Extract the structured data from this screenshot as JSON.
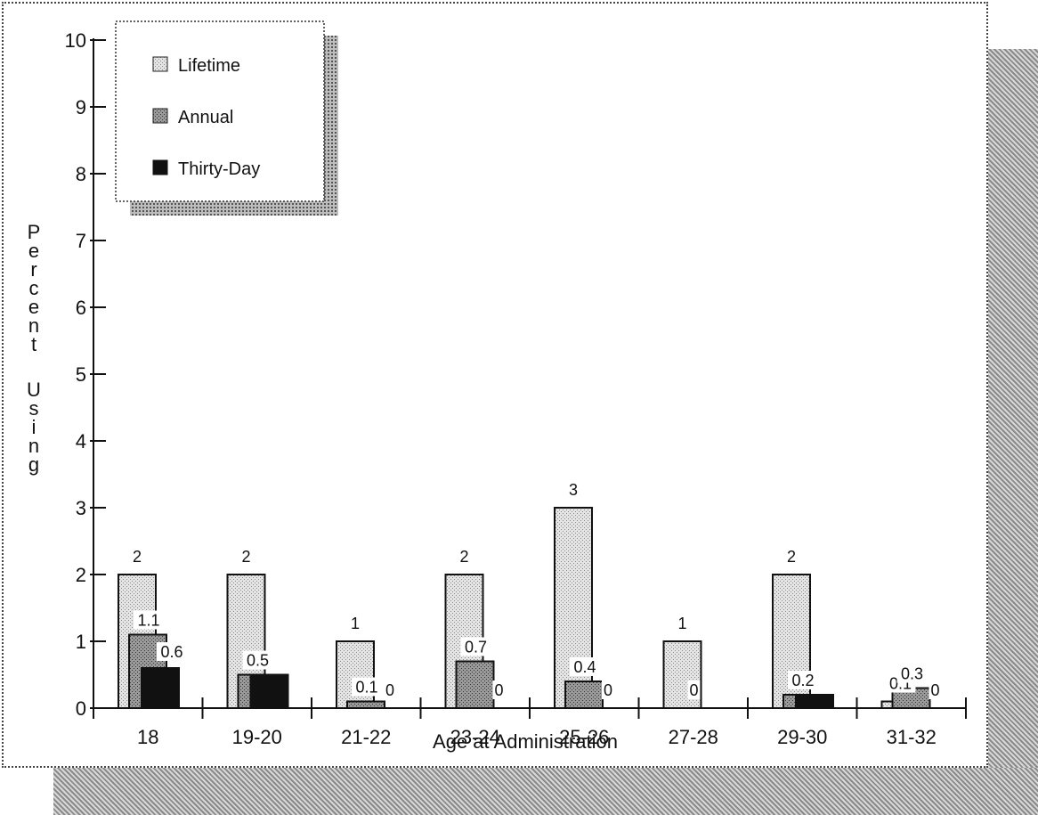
{
  "chart_data": {
    "type": "bar",
    "title": "",
    "xlabel": "Age at Administration",
    "ylabel": "Percent Using",
    "ylim": [
      0,
      10
    ],
    "yticks": [
      "0",
      "1",
      "2",
      "3",
      "4",
      "5",
      "6",
      "7",
      "8",
      "9",
      "10"
    ],
    "categories": [
      "18",
      "19-20",
      "21-22",
      "23-24",
      "25-26",
      "27-28",
      "29-30",
      "31-32"
    ],
    "series": [
      {
        "name": "Lifetime",
        "values": [
          2,
          2,
          1,
          2,
          3,
          1,
          2,
          0.1
        ]
      },
      {
        "name": "Annual",
        "values": [
          1.1,
          0.5,
          0.1,
          0.7,
          0.4,
          0,
          0.2,
          0.3
        ]
      },
      {
        "name": "Thirty-Day",
        "values": [
          0.6,
          0.5,
          0,
          0,
          0,
          0,
          0.2,
          0
        ]
      }
    ],
    "data_labels": [
      [
        "2",
        "1.1",
        "0.6"
      ],
      [
        "2",
        "0.5"
      ],
      [
        "1",
        "0.1",
        "0"
      ],
      [
        "2",
        "0.7",
        "0"
      ],
      [
        "3",
        "0.4",
        "0"
      ],
      [
        "1",
        "0"
      ],
      [
        "2",
        "0.2"
      ],
      [
        "0.1",
        "0.3",
        "0"
      ]
    ],
    "legend_position": "top-left",
    "grid": false,
    "colors": {
      "Lifetime": "#d4d4d4",
      "Annual": "#8c8c8c",
      "Thirty-Day": "#111111"
    }
  }
}
